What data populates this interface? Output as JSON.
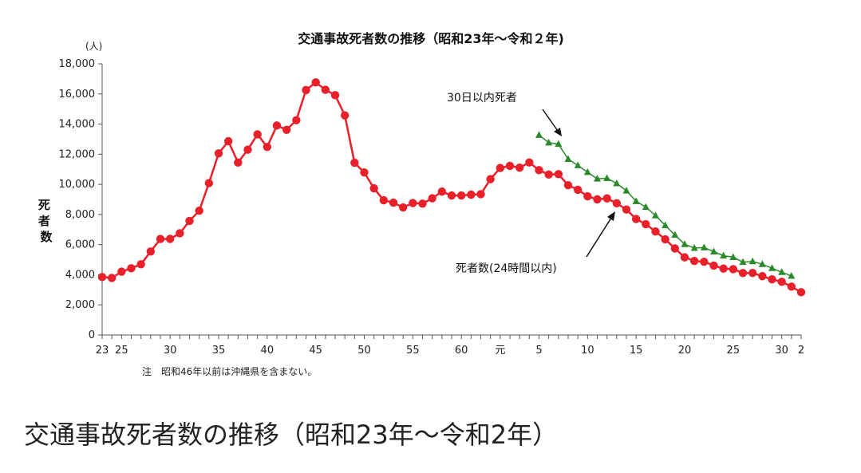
{
  "chart_data": {
    "type": "line",
    "title": "交通事故死者数の推移（昭和23年～令和２年)",
    "y_unit": "(人)",
    "ylabel": "死者数",
    "ylim": [
      0,
      18000
    ],
    "yticks": [
      0,
      2000,
      4000,
      6000,
      8000,
      10000,
      12000,
      14000,
      16000,
      18000
    ],
    "ytick_labels": [
      "0",
      "2,000",
      "4,000",
      "6,000",
      "8,000",
      "10,000",
      "12,000",
      "14,000",
      "16,000",
      "18,000"
    ],
    "xlim": [
      1948,
      2020
    ],
    "xtick_labels": [
      {
        "x": 1948,
        "label": "23"
      },
      {
        "x": 1950,
        "label": "25"
      },
      {
        "x": 1955,
        "label": "30"
      },
      {
        "x": 1960,
        "label": "35"
      },
      {
        "x": 1965,
        "label": "40"
      },
      {
        "x": 1970,
        "label": "45"
      },
      {
        "x": 1975,
        "label": "50"
      },
      {
        "x": 1980,
        "label": "55"
      },
      {
        "x": 1985,
        "label": "60"
      },
      {
        "x": 1989,
        "label": "元"
      },
      {
        "x": 1993,
        "label": "5"
      },
      {
        "x": 1998,
        "label": "10"
      },
      {
        "x": 2003,
        "label": "15"
      },
      {
        "x": 2008,
        "label": "20"
      },
      {
        "x": 2013,
        "label": "25"
      },
      {
        "x": 2018,
        "label": "30"
      },
      {
        "x": 2020,
        "label": "2"
      }
    ],
    "grid": false,
    "series": [
      {
        "name": "死者数(24時間以内)",
        "color": "#e8202a",
        "marker": "circle",
        "x": [
          1948,
          1949,
          1950,
          1951,
          1952,
          1953,
          1954,
          1955,
          1956,
          1957,
          1958,
          1959,
          1960,
          1961,
          1962,
          1963,
          1964,
          1965,
          1966,
          1967,
          1968,
          1969,
          1970,
          1971,
          1972,
          1973,
          1974,
          1975,
          1976,
          1977,
          1978,
          1979,
          1980,
          1981,
          1982,
          1983,
          1984,
          1985,
          1986,
          1987,
          1988,
          1989,
          1990,
          1991,
          1992,
          1993,
          1994,
          1995,
          1996,
          1997,
          1998,
          1999,
          2000,
          2001,
          2002,
          2003,
          2004,
          2005,
          2006,
          2007,
          2008,
          2009,
          2010,
          2011,
          2012,
          2013,
          2014,
          2015,
          2016,
          2017,
          2018,
          2019,
          2020
        ],
        "values": [
          3848,
          3790,
          4202,
          4429,
          4696,
          5544,
          6374,
          6379,
          6751,
          7575,
          8248,
          10079,
          12055,
          12865,
          11445,
          12301,
          13318,
          12484,
          13904,
          13618,
          14256,
          16257,
          16765,
          16278,
          15918,
          14574,
          11432,
          10792,
          9734,
          8945,
          8783,
          8466,
          8760,
          8719,
          9073,
          9520,
          9262,
          9261,
          9317,
          9347,
          10344,
          11086,
          11227,
          11109,
          11451,
          10942,
          10649,
          10679,
          9942,
          9640,
          9211,
          9006,
          9066,
          8747,
          8326,
          7702,
          7358,
          6871,
          6352,
          5744,
          5155,
          4914,
          4863,
          4611,
          4411,
          4373,
          4113,
          4117,
          3904,
          3694,
          3532,
          3215,
          2839
        ]
      },
      {
        "name": "30日以内死者",
        "color": "#2a8a2a",
        "marker": "triangle",
        "x": [
          1993,
          1994,
          1995,
          1996,
          1997,
          1998,
          1999,
          2000,
          2001,
          2002,
          2003,
          2004,
          2005,
          2006,
          2007,
          2008,
          2009,
          2010,
          2011,
          2012,
          2013,
          2014,
          2015,
          2016,
          2017,
          2018,
          2019
        ],
        "values": [
          13269,
          12768,
          12670,
          11674,
          11254,
          10805,
          10372,
          10403,
          10060,
          9575,
          8877,
          8492,
          7931,
          7272,
          6639,
          6023,
          5772,
          5806,
          5535,
          5261,
          5165,
          4838,
          4885,
          4698,
          4431,
          4166,
          3920
        ]
      }
    ],
    "annotations": [
      {
        "text": "30日以内死者",
        "points_to": "30日以内死者"
      },
      {
        "text": "死者数(24時間以内)",
        "points_to": "死者数(24時間以内)"
      }
    ],
    "note": "注　昭和46年以前は沖縄県を含まない。"
  },
  "caption": "交通事故死者数の推移（昭和23年～令和2年）"
}
